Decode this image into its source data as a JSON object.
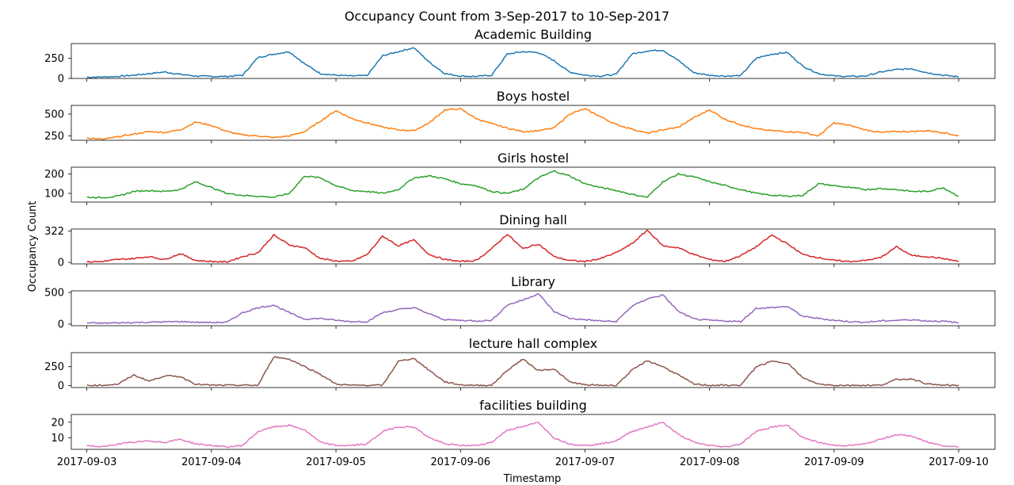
{
  "figure": {
    "title": "Occupancy Count from 3-Sep-2017 to 10-Sep-2017",
    "xlabel": "Timestamp",
    "ylabel": "Occupancy Count",
    "x_tick_labels": [
      "2017-09-03",
      "2017-09-04",
      "2017-09-05",
      "2017-09-06",
      "2017-09-07",
      "2017-09-08",
      "2017-09-09",
      "2017-09-10"
    ]
  },
  "chart_data": [
    {
      "type": "line",
      "title": "Academic Building",
      "color": "#1f77b4",
      "ylim": [
        0,
        430
      ],
      "yticks": [
        0,
        250
      ],
      "x": [
        "2017-09-03 00:00",
        "2017-09-03 03:00",
        "2017-09-03 06:00",
        "2017-09-03 09:00",
        "2017-09-03 12:00",
        "2017-09-03 15:00",
        "2017-09-03 18:00",
        "2017-09-03 21:00",
        "2017-09-04 00:00",
        "2017-09-04 03:00",
        "2017-09-04 06:00",
        "2017-09-04 09:00",
        "2017-09-04 12:00",
        "2017-09-04 15:00",
        "2017-09-04 18:00",
        "2017-09-04 21:00",
        "2017-09-05 00:00",
        "2017-09-05 03:00",
        "2017-09-05 06:00",
        "2017-09-05 09:00",
        "2017-09-05 12:00",
        "2017-09-05 15:00",
        "2017-09-05 18:00",
        "2017-09-05 21:00",
        "2017-09-06 00:00",
        "2017-09-06 03:00",
        "2017-09-06 06:00",
        "2017-09-06 09:00",
        "2017-09-06 12:00",
        "2017-09-06 15:00",
        "2017-09-06 18:00",
        "2017-09-06 21:00",
        "2017-09-07 00:00",
        "2017-09-07 03:00",
        "2017-09-07 06:00",
        "2017-09-07 09:00",
        "2017-09-07 12:00",
        "2017-09-07 15:00",
        "2017-09-07 18:00",
        "2017-09-07 21:00",
        "2017-09-08 00:00",
        "2017-09-08 03:00",
        "2017-09-08 06:00",
        "2017-09-08 09:00",
        "2017-09-08 12:00",
        "2017-09-08 15:00",
        "2017-09-08 18:00",
        "2017-09-08 21:00",
        "2017-09-09 00:00",
        "2017-09-09 03:00",
        "2017-09-09 06:00",
        "2017-09-09 09:00",
        "2017-09-09 12:00",
        "2017-09-09 15:00",
        "2017-09-09 18:00",
        "2017-09-09 21:00",
        "2017-09-10 00:00"
      ],
      "values": [
        15,
        18,
        25,
        40,
        60,
        80,
        50,
        30,
        25,
        25,
        40,
        260,
        300,
        330,
        180,
        60,
        40,
        30,
        35,
        280,
        330,
        380,
        200,
        60,
        30,
        25,
        40,
        300,
        330,
        320,
        220,
        80,
        40,
        30,
        50,
        300,
        340,
        350,
        220,
        70,
        40,
        30,
        35,
        250,
        300,
        320,
        150,
        60,
        30,
        25,
        30,
        80,
        110,
        120,
        70,
        40,
        20
      ]
    },
    {
      "type": "line",
      "title": "Boys hostel",
      "color": "#ff7f0e",
      "ylim": [
        200,
        600
      ],
      "yticks": [
        250,
        500
      ],
      "x": [
        "2017-09-03 00:00",
        "2017-09-03 03:00",
        "2017-09-03 06:00",
        "2017-09-03 09:00",
        "2017-09-03 12:00",
        "2017-09-03 15:00",
        "2017-09-03 18:00",
        "2017-09-03 21:00",
        "2017-09-04 00:00",
        "2017-09-04 03:00",
        "2017-09-04 06:00",
        "2017-09-04 09:00",
        "2017-09-04 12:00",
        "2017-09-04 15:00",
        "2017-09-04 18:00",
        "2017-09-04 21:00",
        "2017-09-05 00:00",
        "2017-09-05 03:00",
        "2017-09-05 06:00",
        "2017-09-05 09:00",
        "2017-09-05 12:00",
        "2017-09-05 15:00",
        "2017-09-05 18:00",
        "2017-09-05 21:00",
        "2017-09-06 00:00",
        "2017-09-06 03:00",
        "2017-09-06 06:00",
        "2017-09-06 09:00",
        "2017-09-06 12:00",
        "2017-09-06 15:00",
        "2017-09-06 18:00",
        "2017-09-06 21:00",
        "2017-09-07 00:00",
        "2017-09-07 03:00",
        "2017-09-07 06:00",
        "2017-09-07 09:00",
        "2017-09-07 12:00",
        "2017-09-07 15:00",
        "2017-09-07 18:00",
        "2017-09-07 21:00",
        "2017-09-08 00:00",
        "2017-09-08 03:00",
        "2017-09-08 06:00",
        "2017-09-08 09:00",
        "2017-09-08 12:00",
        "2017-09-08 15:00",
        "2017-09-08 18:00",
        "2017-09-08 21:00",
        "2017-09-09 00:00",
        "2017-09-09 03:00",
        "2017-09-09 06:00",
        "2017-09-09 09:00",
        "2017-09-09 12:00",
        "2017-09-09 15:00",
        "2017-09-09 18:00",
        "2017-09-09 21:00",
        "2017-09-10 00:00"
      ],
      "values": [
        230,
        210,
        240,
        270,
        300,
        290,
        320,
        410,
        370,
        300,
        260,
        250,
        230,
        250,
        300,
        420,
        540,
        450,
        400,
        350,
        320,
        310,
        400,
        550,
        560,
        450,
        390,
        340,
        300,
        310,
        340,
        500,
        560,
        470,
        380,
        330,
        280,
        320,
        350,
        460,
        550,
        440,
        380,
        330,
        310,
        300,
        290,
        250,
        400,
        370,
        320,
        290,
        300,
        300,
        310,
        290,
        250
      ]
    },
    {
      "type": "line",
      "title": "Girls hostel",
      "color": "#2ca02c",
      "ylim": [
        55,
        235
      ],
      "yticks": [
        100,
        200
      ],
      "x": [
        "2017-09-03 00:00",
        "2017-09-03 03:00",
        "2017-09-03 06:00",
        "2017-09-03 09:00",
        "2017-09-03 12:00",
        "2017-09-03 15:00",
        "2017-09-03 18:00",
        "2017-09-03 21:00",
        "2017-09-04 00:00",
        "2017-09-04 03:00",
        "2017-09-04 06:00",
        "2017-09-04 09:00",
        "2017-09-04 12:00",
        "2017-09-04 15:00",
        "2017-09-04 18:00",
        "2017-09-04 21:00",
        "2017-09-05 00:00",
        "2017-09-05 03:00",
        "2017-09-05 06:00",
        "2017-09-05 09:00",
        "2017-09-05 12:00",
        "2017-09-05 15:00",
        "2017-09-05 18:00",
        "2017-09-05 21:00",
        "2017-09-06 00:00",
        "2017-09-06 03:00",
        "2017-09-06 06:00",
        "2017-09-06 09:00",
        "2017-09-06 12:00",
        "2017-09-06 15:00",
        "2017-09-06 18:00",
        "2017-09-06 21:00",
        "2017-09-07 00:00",
        "2017-09-07 03:00",
        "2017-09-07 06:00",
        "2017-09-07 09:00",
        "2017-09-07 12:00",
        "2017-09-07 15:00",
        "2017-09-07 18:00",
        "2017-09-07 21:00",
        "2017-09-08 00:00",
        "2017-09-08 03:00",
        "2017-09-08 06:00",
        "2017-09-08 09:00",
        "2017-09-08 12:00",
        "2017-09-08 15:00",
        "2017-09-08 18:00",
        "2017-09-08 21:00",
        "2017-09-09 00:00",
        "2017-09-09 03:00",
        "2017-09-09 06:00",
        "2017-09-09 09:00",
        "2017-09-09 12:00",
        "2017-09-09 15:00",
        "2017-09-09 18:00",
        "2017-09-09 21:00",
        "2017-09-10 00:00"
      ],
      "values": [
        80,
        78,
        85,
        110,
        115,
        110,
        120,
        160,
        130,
        100,
        90,
        85,
        80,
        100,
        190,
        180,
        140,
        115,
        110,
        100,
        120,
        180,
        190,
        175,
        150,
        140,
        110,
        100,
        120,
        180,
        215,
        190,
        150,
        130,
        115,
        95,
        80,
        160,
        200,
        185,
        160,
        140,
        120,
        100,
        90,
        85,
        90,
        150,
        140,
        130,
        120,
        125,
        120,
        110,
        110,
        130,
        85
      ]
    },
    {
      "type": "line",
      "title": "Dining hall",
      "color": "#d62728",
      "ylim": [
        -15,
        342
      ],
      "yticks": [
        0,
        322
      ],
      "x": [
        "2017-09-03 00:00",
        "2017-09-03 03:00",
        "2017-09-03 06:00",
        "2017-09-03 09:00",
        "2017-09-03 12:00",
        "2017-09-03 15:00",
        "2017-09-03 18:00",
        "2017-09-03 21:00",
        "2017-09-04 00:00",
        "2017-09-04 03:00",
        "2017-09-04 06:00",
        "2017-09-04 09:00",
        "2017-09-04 12:00",
        "2017-09-04 15:00",
        "2017-09-04 18:00",
        "2017-09-04 21:00",
        "2017-09-05 00:00",
        "2017-09-05 03:00",
        "2017-09-05 06:00",
        "2017-09-05 09:00",
        "2017-09-05 12:00",
        "2017-09-05 15:00",
        "2017-09-05 18:00",
        "2017-09-05 21:00",
        "2017-09-06 00:00",
        "2017-09-06 03:00",
        "2017-09-06 06:00",
        "2017-09-06 09:00",
        "2017-09-06 12:00",
        "2017-09-06 15:00",
        "2017-09-06 18:00",
        "2017-09-06 21:00",
        "2017-09-07 00:00",
        "2017-09-07 03:00",
        "2017-09-07 06:00",
        "2017-09-07 09:00",
        "2017-09-07 12:00",
        "2017-09-07 15:00",
        "2017-09-07 18:00",
        "2017-09-07 21:00",
        "2017-09-08 00:00",
        "2017-09-08 03:00",
        "2017-09-08 06:00",
        "2017-09-08 09:00",
        "2017-09-08 12:00",
        "2017-09-08 15:00",
        "2017-09-08 18:00",
        "2017-09-08 21:00",
        "2017-09-09 00:00",
        "2017-09-09 03:00",
        "2017-09-09 06:00",
        "2017-09-09 09:00",
        "2017-09-09 12:00",
        "2017-09-09 15:00",
        "2017-09-09 18:00",
        "2017-09-09 21:00",
        "2017-09-10 00:00"
      ],
      "values": [
        5,
        10,
        30,
        40,
        60,
        30,
        90,
        20,
        10,
        5,
        60,
        100,
        280,
        180,
        150,
        40,
        15,
        10,
        80,
        270,
        170,
        230,
        80,
        30,
        10,
        20,
        140,
        290,
        140,
        190,
        60,
        20,
        10,
        40,
        100,
        190,
        330,
        170,
        150,
        80,
        30,
        10,
        70,
        160,
        280,
        190,
        80,
        50,
        20,
        10,
        20,
        50,
        160,
        70,
        60,
        40,
        10
      ]
    },
    {
      "type": "line",
      "title": "Library",
      "color": "#9467bd",
      "ylim": [
        -25,
        525
      ],
      "yticks": [
        0,
        500
      ],
      "x": [
        "2017-09-03 00:00",
        "2017-09-03 03:00",
        "2017-09-03 06:00",
        "2017-09-03 09:00",
        "2017-09-03 12:00",
        "2017-09-03 15:00",
        "2017-09-03 18:00",
        "2017-09-03 21:00",
        "2017-09-04 00:00",
        "2017-09-04 03:00",
        "2017-09-04 06:00",
        "2017-09-04 09:00",
        "2017-09-04 12:00",
        "2017-09-04 15:00",
        "2017-09-04 18:00",
        "2017-09-04 21:00",
        "2017-09-05 00:00",
        "2017-09-05 03:00",
        "2017-09-05 06:00",
        "2017-09-05 09:00",
        "2017-09-05 12:00",
        "2017-09-05 15:00",
        "2017-09-05 18:00",
        "2017-09-05 21:00",
        "2017-09-06 00:00",
        "2017-09-06 03:00",
        "2017-09-06 06:00",
        "2017-09-06 09:00",
        "2017-09-06 12:00",
        "2017-09-06 15:00",
        "2017-09-06 18:00",
        "2017-09-06 21:00",
        "2017-09-07 00:00",
        "2017-09-07 03:00",
        "2017-09-07 06:00",
        "2017-09-07 09:00",
        "2017-09-07 12:00",
        "2017-09-07 15:00",
        "2017-09-07 18:00",
        "2017-09-07 21:00",
        "2017-09-08 00:00",
        "2017-09-08 03:00",
        "2017-09-08 06:00",
        "2017-09-08 09:00",
        "2017-09-08 12:00",
        "2017-09-08 15:00",
        "2017-09-08 18:00",
        "2017-09-08 21:00",
        "2017-09-09 00:00",
        "2017-09-09 03:00",
        "2017-09-09 06:00",
        "2017-09-09 09:00",
        "2017-09-09 12:00",
        "2017-09-09 15:00",
        "2017-09-09 18:00",
        "2017-09-09 21:00",
        "2017-09-10 00:00"
      ],
      "values": [
        20,
        15,
        20,
        25,
        30,
        35,
        40,
        30,
        25,
        30,
        180,
        260,
        300,
        180,
        80,
        90,
        60,
        40,
        40,
        180,
        230,
        260,
        160,
        70,
        60,
        50,
        60,
        300,
        380,
        480,
        200,
        90,
        70,
        50,
        40,
        280,
        400,
        460,
        200,
        80,
        60,
        50,
        40,
        250,
        260,
        280,
        120,
        90,
        60,
        40,
        30,
        50,
        60,
        70,
        50,
        45,
        20
      ]
    },
    {
      "type": "line",
      "title": "lecture hall complex",
      "color": "#8c564b",
      "ylim": [
        -25,
        435
      ],
      "yticks": [
        0,
        250
      ],
      "x": [
        "2017-09-03 00:00",
        "2017-09-03 03:00",
        "2017-09-03 06:00",
        "2017-09-03 09:00",
        "2017-09-03 12:00",
        "2017-09-03 15:00",
        "2017-09-03 18:00",
        "2017-09-03 21:00",
        "2017-09-04 00:00",
        "2017-09-04 03:00",
        "2017-09-04 06:00",
        "2017-09-04 09:00",
        "2017-09-04 12:00",
        "2017-09-04 15:00",
        "2017-09-04 18:00",
        "2017-09-04 21:00",
        "2017-09-05 00:00",
        "2017-09-05 03:00",
        "2017-09-05 06:00",
        "2017-09-05 09:00",
        "2017-09-05 12:00",
        "2017-09-05 15:00",
        "2017-09-05 18:00",
        "2017-09-05 21:00",
        "2017-09-06 00:00",
        "2017-09-06 03:00",
        "2017-09-06 06:00",
        "2017-09-06 09:00",
        "2017-09-06 12:00",
        "2017-09-06 15:00",
        "2017-09-06 18:00",
        "2017-09-06 21:00",
        "2017-09-07 00:00",
        "2017-09-07 03:00",
        "2017-09-07 06:00",
        "2017-09-07 09:00",
        "2017-09-07 12:00",
        "2017-09-07 15:00",
        "2017-09-07 18:00",
        "2017-09-07 21:00",
        "2017-09-08 00:00",
        "2017-09-08 03:00",
        "2017-09-08 06:00",
        "2017-09-08 09:00",
        "2017-09-08 12:00",
        "2017-09-08 15:00",
        "2017-09-08 18:00",
        "2017-09-08 21:00",
        "2017-09-09 00:00",
        "2017-09-09 03:00",
        "2017-09-09 06:00",
        "2017-09-09 09:00",
        "2017-09-09 12:00",
        "2017-09-09 15:00",
        "2017-09-09 18:00",
        "2017-09-09 21:00",
        "2017-09-10 00:00"
      ],
      "values": [
        5,
        5,
        20,
        140,
        60,
        130,
        120,
        20,
        5,
        5,
        5,
        5,
        380,
        350,
        250,
        150,
        20,
        5,
        5,
        5,
        320,
        360,
        200,
        50,
        10,
        5,
        5,
        200,
        350,
        200,
        220,
        50,
        10,
        5,
        5,
        200,
        330,
        250,
        140,
        20,
        5,
        5,
        5,
        250,
        320,
        300,
        100,
        20,
        5,
        5,
        5,
        5,
        80,
        90,
        20,
        5,
        5
      ]
    },
    {
      "type": "line",
      "title": "facilities building",
      "color": "#e377c2",
      "ylim": [
        2.5,
        25
      ],
      "yticks": [
        10,
        20
      ],
      "x": [
        "2017-09-03 00:00",
        "2017-09-03 03:00",
        "2017-09-03 06:00",
        "2017-09-03 09:00",
        "2017-09-03 12:00",
        "2017-09-03 15:00",
        "2017-09-03 18:00",
        "2017-09-03 21:00",
        "2017-09-04 00:00",
        "2017-09-04 03:00",
        "2017-09-04 06:00",
        "2017-09-04 09:00",
        "2017-09-04 12:00",
        "2017-09-04 15:00",
        "2017-09-04 18:00",
        "2017-09-04 21:00",
        "2017-09-05 00:00",
        "2017-09-05 03:00",
        "2017-09-05 06:00",
        "2017-09-05 09:00",
        "2017-09-05 12:00",
        "2017-09-05 15:00",
        "2017-09-05 18:00",
        "2017-09-05 21:00",
        "2017-09-06 00:00",
        "2017-09-06 03:00",
        "2017-09-06 06:00",
        "2017-09-06 09:00",
        "2017-09-06 12:00",
        "2017-09-06 15:00",
        "2017-09-06 18:00",
        "2017-09-06 21:00",
        "2017-09-07 00:00",
        "2017-09-07 03:00",
        "2017-09-07 06:00",
        "2017-09-07 09:00",
        "2017-09-07 12:00",
        "2017-09-07 15:00",
        "2017-09-07 18:00",
        "2017-09-07 21:00",
        "2017-09-08 00:00",
        "2017-09-08 03:00",
        "2017-09-08 06:00",
        "2017-09-08 09:00",
        "2017-09-08 12:00",
        "2017-09-08 15:00",
        "2017-09-08 18:00",
        "2017-09-08 21:00",
        "2017-09-09 00:00",
        "2017-09-09 03:00",
        "2017-09-09 06:00",
        "2017-09-09 09:00",
        "2017-09-09 12:00",
        "2017-09-09 15:00",
        "2017-09-09 18:00",
        "2017-09-09 21:00",
        "2017-09-10 00:00"
      ],
      "values": [
        5,
        4,
        6,
        7,
        8,
        7,
        9,
        6,
        5,
        4,
        5,
        14,
        17,
        18,
        15,
        7,
        5,
        5,
        6,
        14,
        17,
        17,
        10,
        6,
        5,
        5,
        7,
        15,
        17,
        20,
        10,
        6,
        5,
        6,
        8,
        14,
        17,
        20,
        12,
        7,
        5,
        4,
        6,
        14,
        17,
        18,
        10,
        7,
        5,
        5,
        6,
        9,
        12,
        11,
        7,
        5,
        4
      ]
    }
  ]
}
